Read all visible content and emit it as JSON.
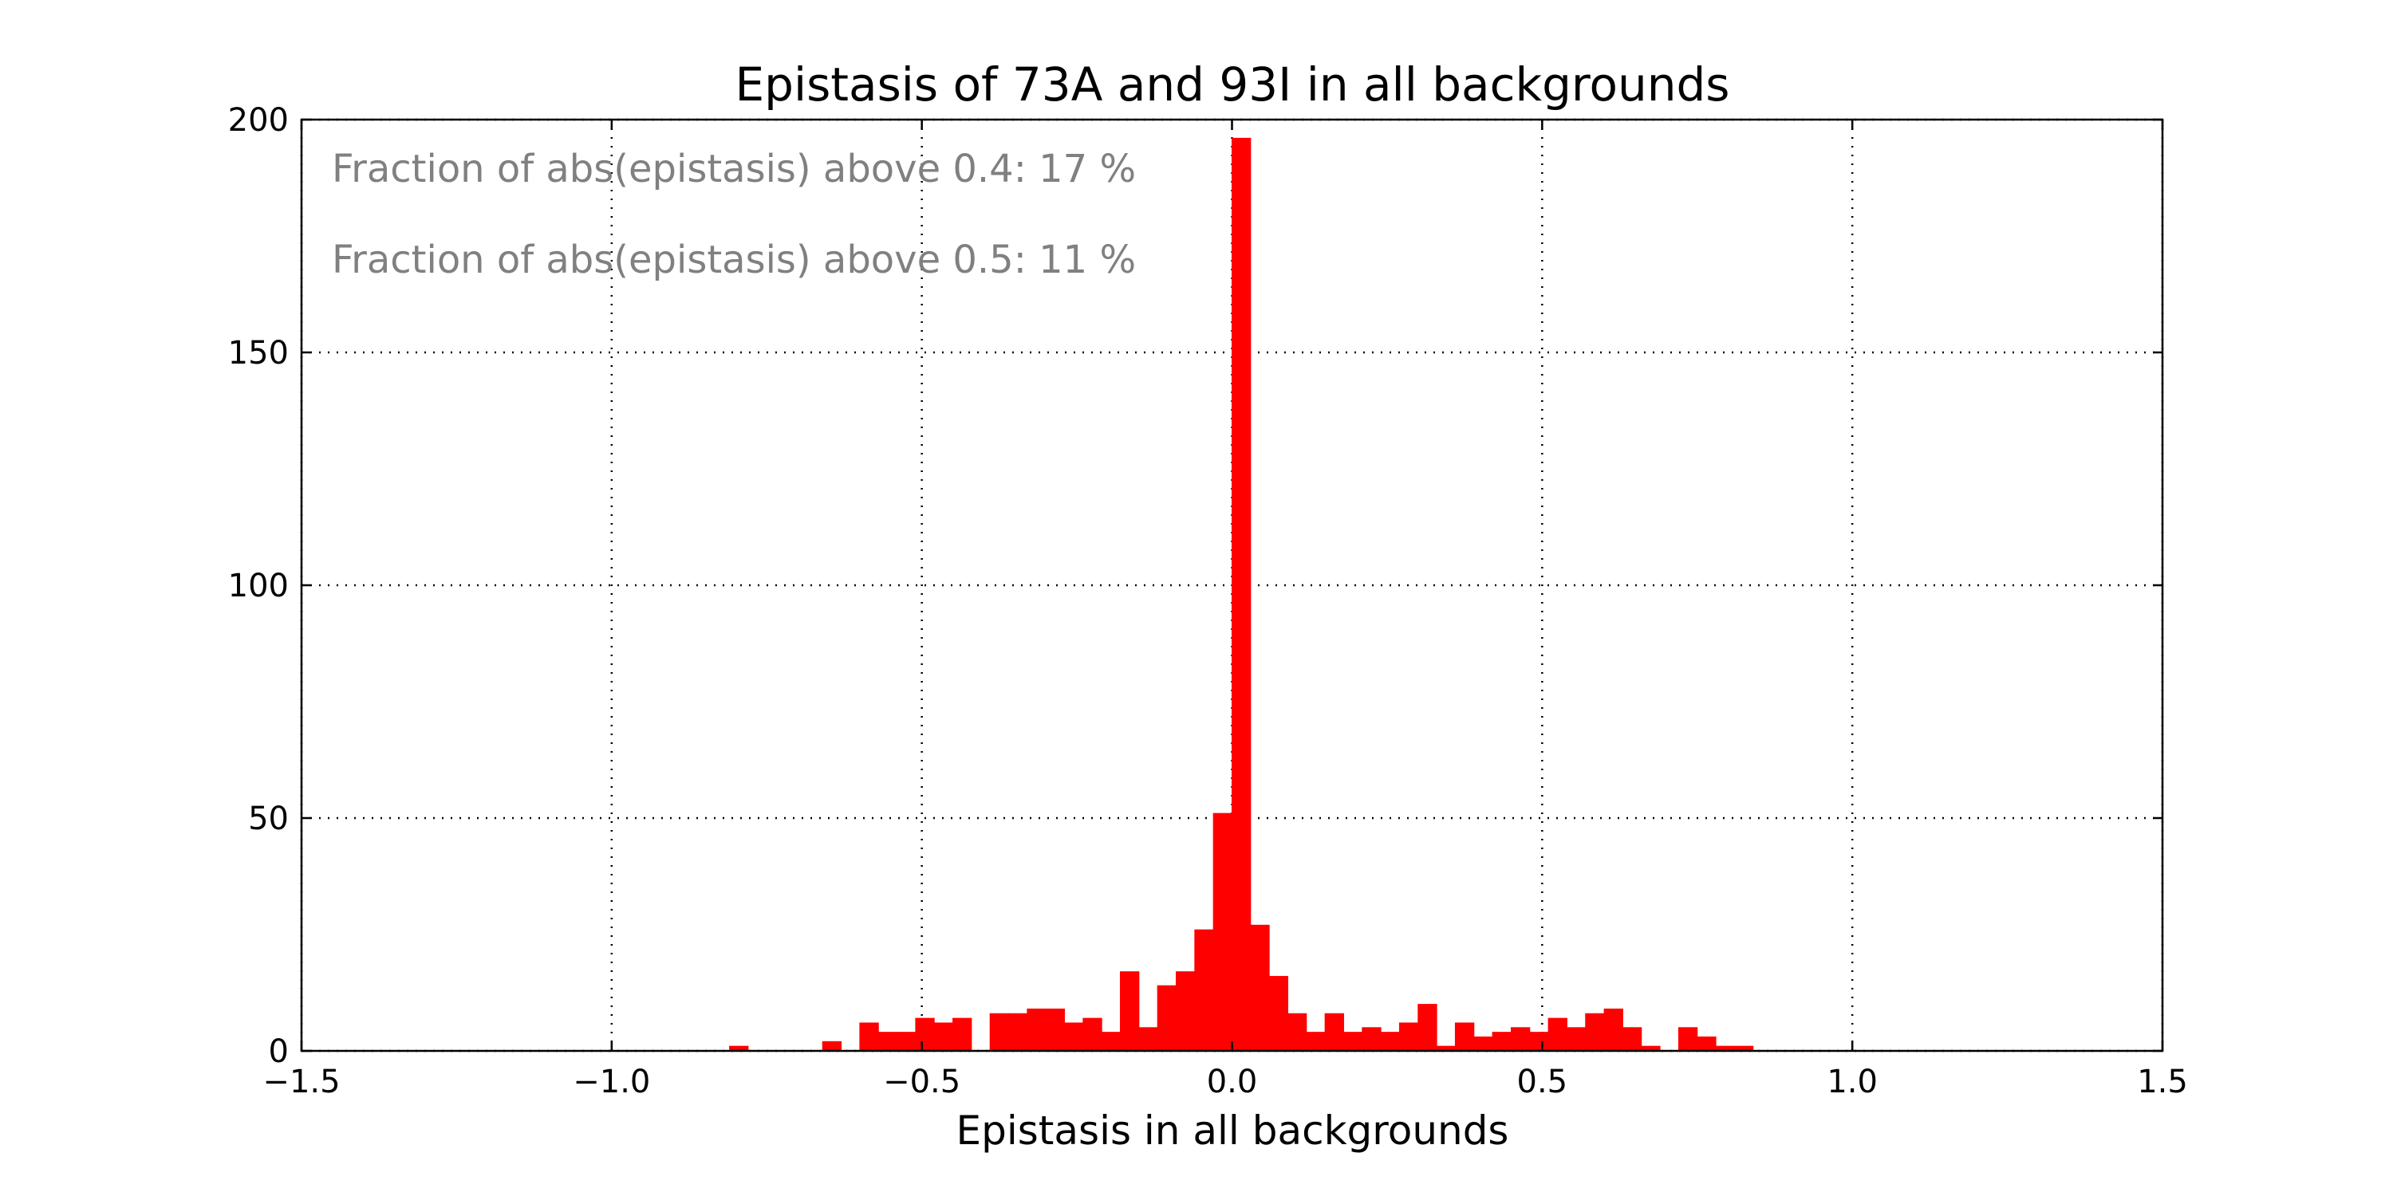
{
  "chart_data": {
    "type": "bar",
    "title": "Epistasis of 73A and 93I in all backgrounds",
    "xlabel": "Epistasis in all backgrounds",
    "ylabel": "",
    "xlim": [
      -1.5,
      1.5
    ],
    "ylim": [
      0,
      200
    ],
    "grid": true,
    "bar_color": "#ff0000",
    "bin_width": 0.03,
    "x_ticks": [
      -1.5,
      -1.0,
      -0.5,
      0.0,
      0.5,
      1.0,
      1.5
    ],
    "x_tick_labels": [
      "−1.5",
      "−1.0",
      "−0.5",
      "0.0",
      "0.5",
      "1.0",
      "1.5"
    ],
    "y_ticks": [
      0,
      50,
      100,
      150,
      200
    ],
    "y_tick_labels": [
      "0",
      "50",
      "100",
      "150",
      "200"
    ],
    "bins": [
      {
        "x": -0.81,
        "count": 1
      },
      {
        "x": -0.66,
        "count": 2
      },
      {
        "x": -0.6,
        "count": 6
      },
      {
        "x": -0.57,
        "count": 4
      },
      {
        "x": -0.54,
        "count": 4
      },
      {
        "x": -0.51,
        "count": 7
      },
      {
        "x": -0.48,
        "count": 6
      },
      {
        "x": -0.45,
        "count": 7
      },
      {
        "x": -0.39,
        "count": 8
      },
      {
        "x": -0.36,
        "count": 8
      },
      {
        "x": -0.33,
        "count": 9
      },
      {
        "x": -0.3,
        "count": 9
      },
      {
        "x": -0.27,
        "count": 6
      },
      {
        "x": -0.24,
        "count": 7
      },
      {
        "x": -0.21,
        "count": 4
      },
      {
        "x": -0.18,
        "count": 17
      },
      {
        "x": -0.15,
        "count": 5
      },
      {
        "x": -0.12,
        "count": 14
      },
      {
        "x": -0.09,
        "count": 17
      },
      {
        "x": -0.06,
        "count": 26
      },
      {
        "x": -0.03,
        "count": 51
      },
      {
        "x": 0.0,
        "count": 196
      },
      {
        "x": 0.03,
        "count": 27
      },
      {
        "x": 0.06,
        "count": 16
      },
      {
        "x": 0.09,
        "count": 8
      },
      {
        "x": 0.12,
        "count": 4
      },
      {
        "x": 0.15,
        "count": 8
      },
      {
        "x": 0.18,
        "count": 4
      },
      {
        "x": 0.21,
        "count": 5
      },
      {
        "x": 0.24,
        "count": 4
      },
      {
        "x": 0.27,
        "count": 6
      },
      {
        "x": 0.3,
        "count": 10
      },
      {
        "x": 0.33,
        "count": 1
      },
      {
        "x": 0.36,
        "count": 6
      },
      {
        "x": 0.39,
        "count": 3
      },
      {
        "x": 0.42,
        "count": 4
      },
      {
        "x": 0.45,
        "count": 5
      },
      {
        "x": 0.48,
        "count": 4
      },
      {
        "x": 0.51,
        "count": 7
      },
      {
        "x": 0.54,
        "count": 5
      },
      {
        "x": 0.57,
        "count": 8
      },
      {
        "x": 0.6,
        "count": 9
      },
      {
        "x": 0.63,
        "count": 5
      },
      {
        "x": 0.66,
        "count": 1
      },
      {
        "x": 0.72,
        "count": 5
      },
      {
        "x": 0.75,
        "count": 3
      },
      {
        "x": 0.78,
        "count": 1
      },
      {
        "x": 0.81,
        "count": 1
      }
    ],
    "annotations": [
      "Fraction of abs(epistasis) above 0.4: 17 %",
      "Fraction of abs(epistasis) above 0.5: 11 %"
    ]
  }
}
